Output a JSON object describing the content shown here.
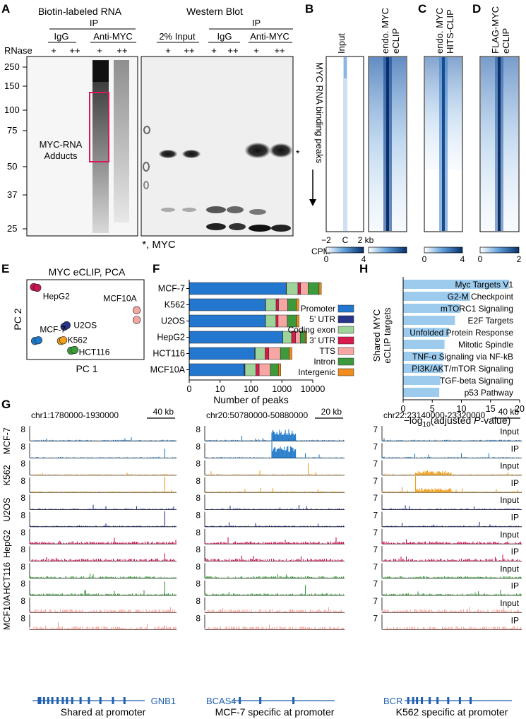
{
  "panel_a": {
    "letter": "A",
    "title_left": "Biotin-labeled RNA",
    "ip_left": "IP",
    "igg": "IgG",
    "anti_myc": "Anti-MYC",
    "rnase_label": "RNase",
    "plus": "+",
    "plus2": "++",
    "mw_ticks": [
      "250",
      "150",
      "100",
      "75",
      "50",
      "37",
      "25"
    ],
    "adducts_line1": "MYC-RNA",
    "adducts_line2": "Adducts",
    "title_right": "Western Blot",
    "ip_right": "IP",
    "input_label": "2% Input",
    "igg2": "IgG",
    "anti_myc2": "Anti-MYC",
    "star": "*",
    "footnote": "*, MYC"
  },
  "panel_b": {
    "letter": "B",
    "col1": "Input",
    "col2_line1": "endo. MYC",
    "col2_line2": "eCLIP",
    "yaxis": "MYC RNA binding peaks",
    "x_left": "−2",
    "x_mid": "C",
    "x_right": "2 kb",
    "cpm": "CPM",
    "scale_min": "0",
    "scale_max": "4"
  },
  "panel_c": {
    "letter": "C",
    "col_line1": "endo. MYC",
    "col_line2": "HITS-CLIP",
    "scale_min": "0",
    "scale_max": "4"
  },
  "panel_d": {
    "letter": "D",
    "col_line1": "FLAG-MYC",
    "col_line2": "eCLIP",
    "scale_min": "0",
    "scale_max": "2"
  },
  "panel_e": {
    "letter": "E",
    "title": "MYC eCLIP, PCA",
    "xlabel": "PC 1",
    "ylabel": "PC 2"
  },
  "panel_f": {
    "letter": "F"
  },
  "panel_h": {
    "letter": "H"
  },
  "panel_g": {
    "letter": "G",
    "columns": [
      {
        "region": "chr1:1780000-1930000",
        "scale": "40 kb",
        "gene": "GNB1",
        "caption": "Shared at promoter"
      },
      {
        "region": "chr20:50780000-50880000",
        "scale": "20 kb",
        "gene": "BCAS4",
        "caption": "MCF-7 specific at promoter"
      },
      {
        "region": "chr22:23140000-23320000",
        "scale": "40 kb",
        "gene": "BCR",
        "caption": "K562 specific at promoter"
      }
    ],
    "col_ymax": [
      "8",
      "8",
      "7"
    ],
    "cell_lines": [
      "MCF-7",
      "K562",
      "U2OS",
      "HepG2",
      "HCT116",
      "MCF10A"
    ],
    "track_labels": [
      "Input",
      "IP"
    ],
    "colors": [
      "#1f78c8",
      "#f0a020",
      "#27348b",
      "#c8174e",
      "#3c9a3c",
      "#f4a6a0"
    ]
  },
  "chart_data": [
    {
      "type": "scatter",
      "title": "MYC eCLIP, PCA",
      "xlabel": "PC 1",
      "ylabel": "PC 2",
      "xlim": [
        0,
        100
      ],
      "ylim": [
        0,
        100
      ],
      "series": [
        {
          "name": "HepG2",
          "color": "#c8174e",
          "points": [
            [
              5,
              93
            ],
            [
              8,
              92
            ]
          ]
        },
        {
          "name": "MCF10A",
          "color": "#f4a6a0",
          "points": [
            [
              96,
              62
            ],
            [
              96,
              49
            ]
          ]
        },
        {
          "name": "U2OS",
          "color": "#27348b",
          "points": [
            [
              32,
              40
            ],
            [
              34,
              42
            ]
          ]
        },
        {
          "name": "MCF-7",
          "color": "#1f78c8",
          "points": [
            [
              6,
              21
            ],
            [
              9,
              22
            ]
          ]
        },
        {
          "name": "K562",
          "color": "#f0a020",
          "points": [
            [
              29,
              21
            ],
            [
              31,
              22
            ]
          ]
        },
        {
          "name": "HCT116",
          "color": "#3c9a3c",
          "points": [
            [
              38,
              8
            ],
            [
              41,
              9
            ]
          ]
        }
      ]
    },
    {
      "type": "bar",
      "orientation": "horizontal",
      "stacked": true,
      "xscale": "log",
      "xlabel": "Number of peaks",
      "xticks": [
        "0",
        "10",
        "100",
        "1000",
        "10000"
      ],
      "categories": [
        "MCF-7",
        "K562",
        "U2OS",
        "HepG2",
        "HCT116",
        "MCF10A"
      ],
      "segment_order": [
        "Promoter",
        "5’ UTR",
        "Coding exon",
        "3’ UTR",
        "TTS",
        "Intron",
        "Intergenic"
      ],
      "legend": [
        {
          "name": "Promoter",
          "color": "#2477cf"
        },
        {
          "name": "5’ UTR",
          "color": "#27348b"
        },
        {
          "name": "Coding exon",
          "color": "#9ed39a"
        },
        {
          "name": "3’ UTR",
          "color": "#d81b4d"
        },
        {
          "name": "TTS",
          "color": "#f6a6a3"
        },
        {
          "name": "Intron",
          "color": "#3c9a3c"
        },
        {
          "name": "Intergenic",
          "color": "#f28c1e"
        }
      ],
      "series": [
        {
          "name": "Promoter",
          "values": [
            1380,
            295,
            290,
            1060,
            132,
            60
          ]
        },
        {
          "name": "5’ UTR",
          "values": [
            30,
            5,
            5,
            10,
            5,
            4
          ]
        },
        {
          "name": "Coding exon",
          "values": [
            1900,
            350,
            345,
            1000,
            150,
            80
          ]
        },
        {
          "name": "3’ UTR",
          "values": [
            700,
            130,
            115,
            700,
            90,
            40
          ]
        },
        {
          "name": "TTS",
          "values": [
            3000,
            760,
            740,
            1150,
            520,
            240
          ]
        },
        {
          "name": "Intron",
          "values": [
            9000,
            1400,
            1500,
            1800,
            820,
            350
          ]
        },
        {
          "name": "Intergenic",
          "values": [
            2900,
            600,
            600,
            700,
            400,
            150
          ]
        }
      ]
    },
    {
      "type": "bar",
      "orientation": "horizontal",
      "ylabel_line1": "Shared MYC",
      "ylabel_line2": "eCLIP targets",
      "xlabel_prefix": "−log",
      "xlabel_sub": "10",
      "xlabel_mid": "(adjusted ",
      "xlabel_italic": "P",
      "xlabel_suffix": "-value)",
      "xticks": [
        "0",
        "5",
        "10",
        "15",
        "20"
      ],
      "xlim": [
        0,
        20
      ],
      "color": "#9ccbee",
      "categories": [
        "Myc Targets V1",
        "G2-M Checkpoint",
        "mTORC1 Signaling",
        "E2F Targets",
        "Unfolded Protein Response",
        "Mitotic Spindle",
        "TNF-α Signaling via NF-kB",
        "PI3K/AKT/mTOR  Signaling",
        "TGF-beta Signaling",
        "p53 Pathway"
      ],
      "values": [
        18.2,
        11.5,
        9.8,
        8.9,
        7.9,
        7.1,
        6.9,
        6.8,
        6.4,
        6.2
      ]
    }
  ]
}
